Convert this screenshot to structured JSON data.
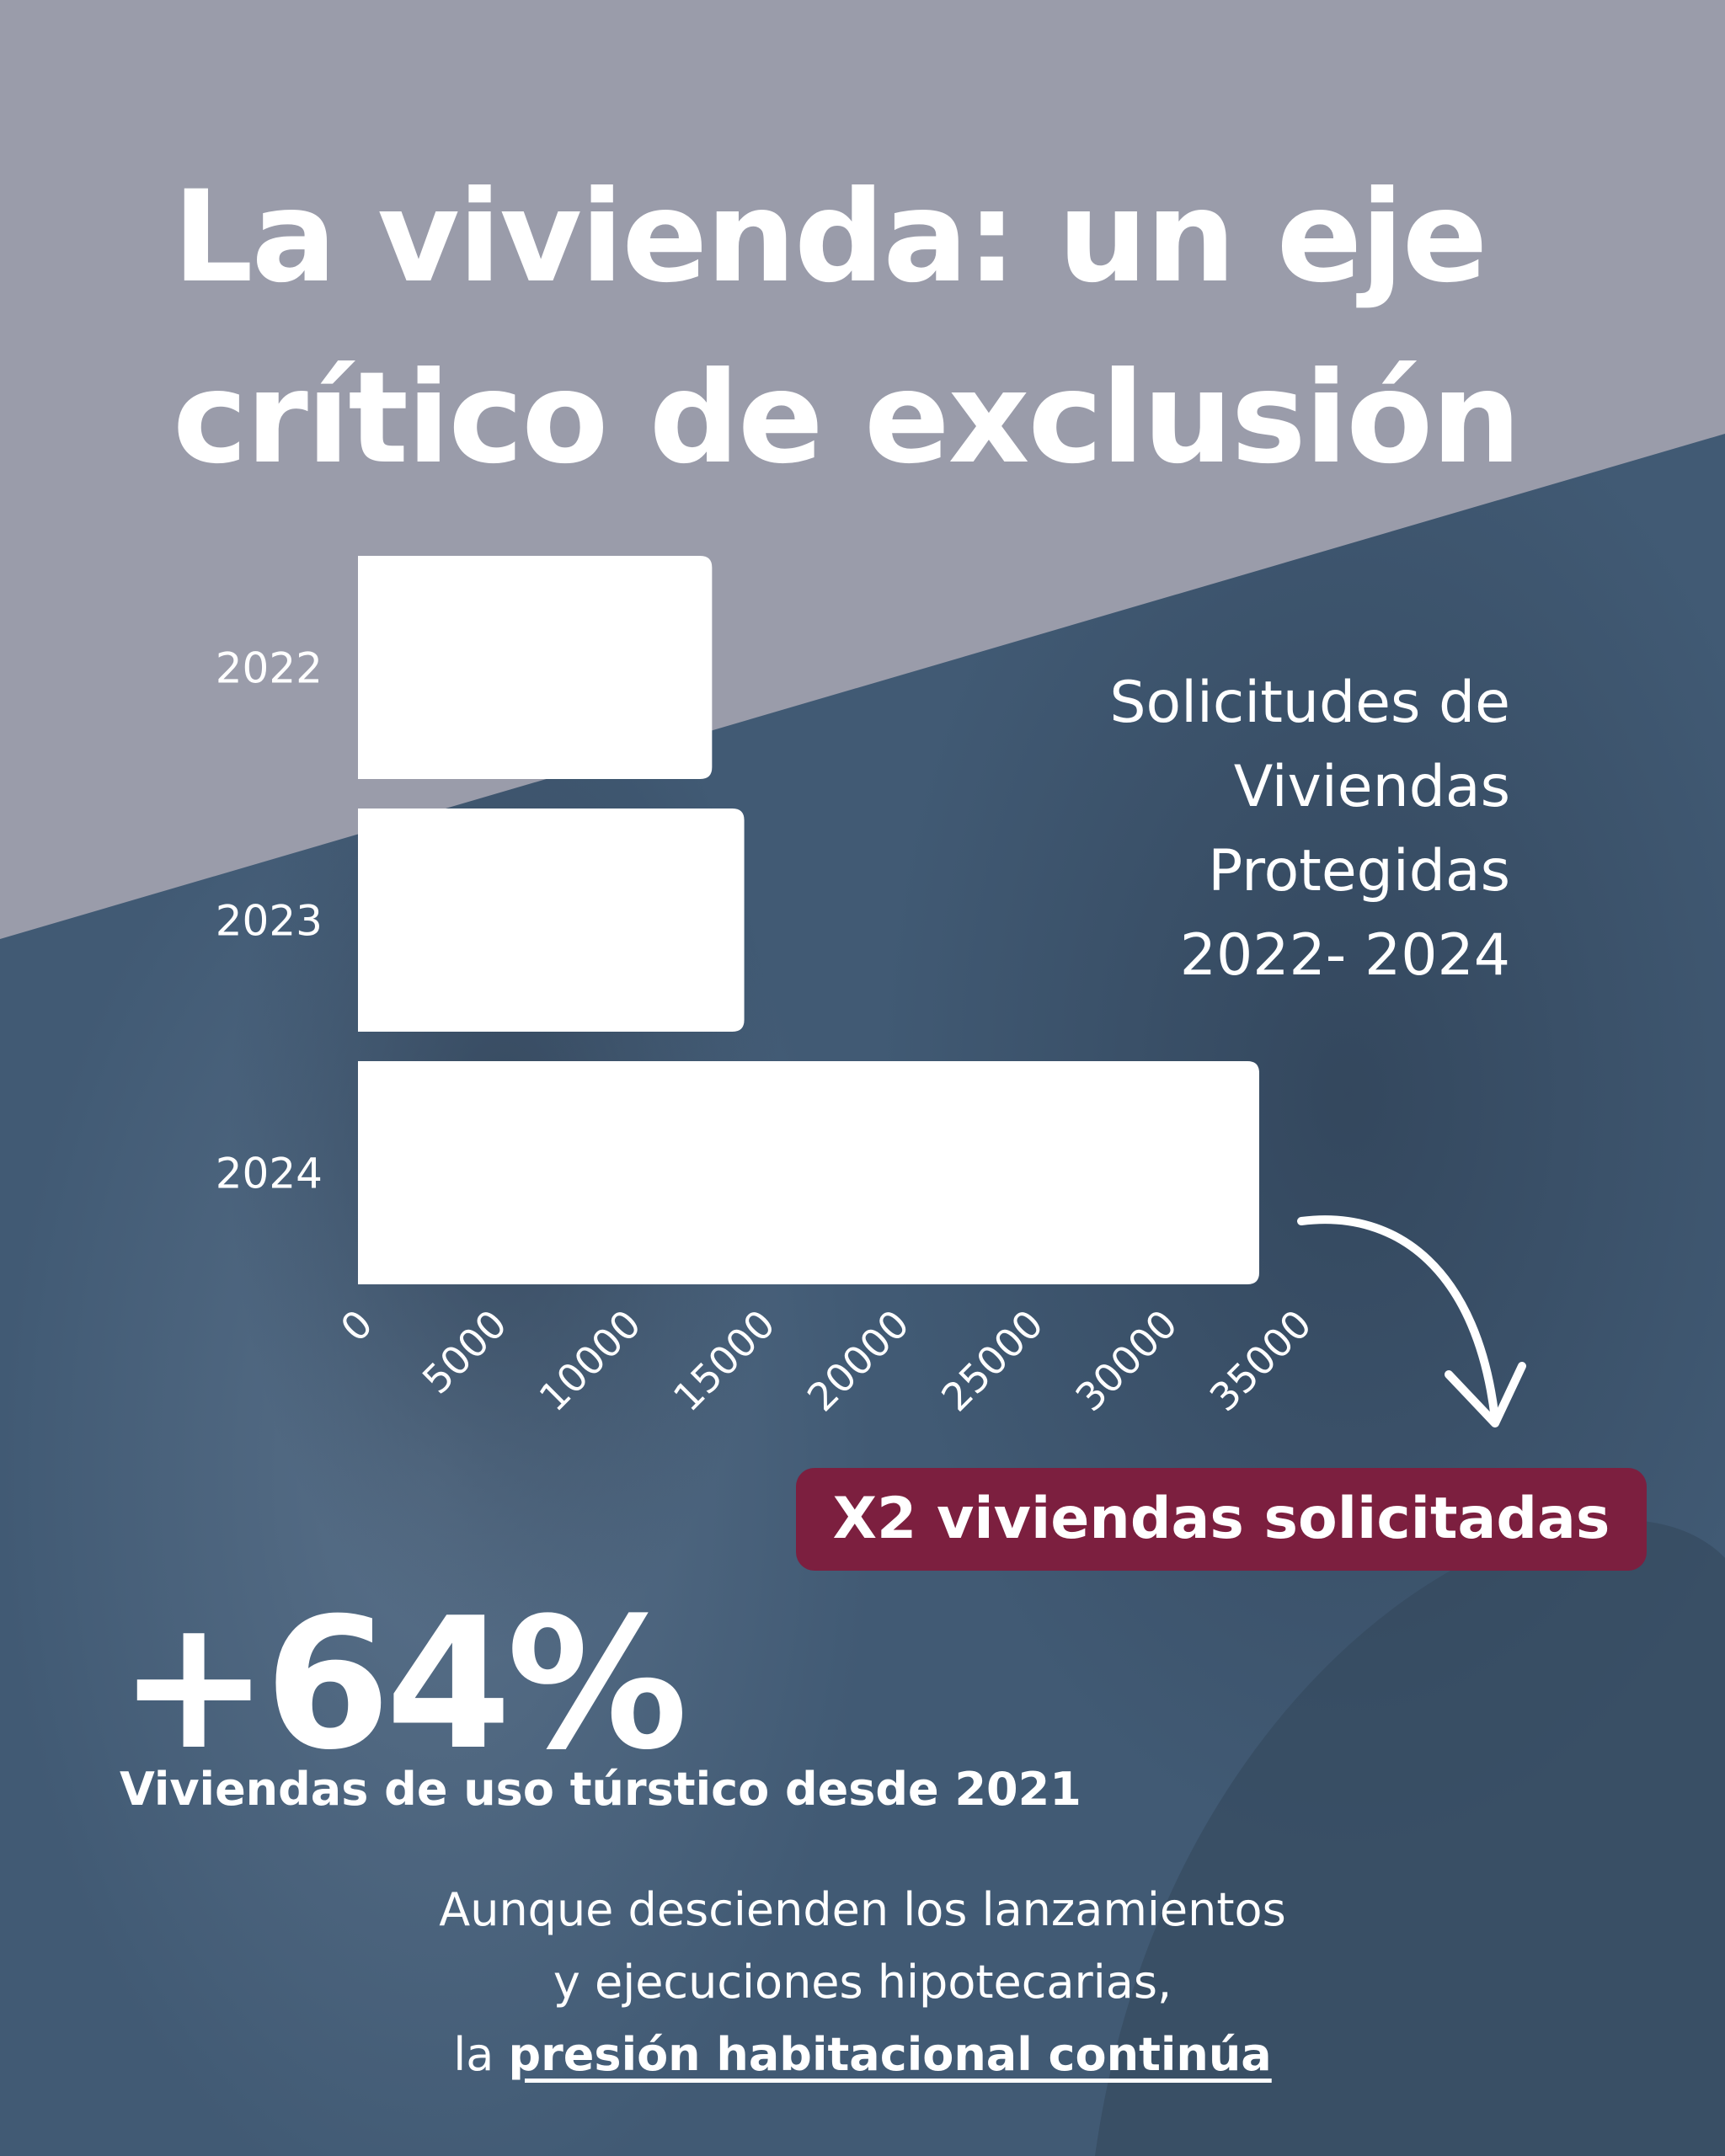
{
  "title": {
    "line1": "La vivienda: un eje",
    "line2": "crítico de exclusión"
  },
  "chart_data": {
    "type": "bar",
    "orientation": "horizontal",
    "title": "Solicitudes de Viviendas Protegidas 2022- 2024",
    "title_lines": [
      "Solicitudes de",
      "Viviendas",
      "Protegidas",
      "2022- 2024"
    ],
    "categories": [
      "2022",
      "2023",
      "2024"
    ],
    "values": [
      13200,
      14400,
      33600
    ],
    "xticks": [
      "0",
      "5000",
      "10000",
      "15000",
      "20000",
      "25000",
      "30000",
      "35000"
    ],
    "xlim": [
      0,
      35000
    ],
    "xlabel": "",
    "ylabel": "",
    "grid": false,
    "bar_color": "#ffffff"
  },
  "callout": {
    "badge": "X2 viviendas solicitadas"
  },
  "stat": {
    "value": "+64%",
    "label": "Viviendas de uso túrstico desde 2021"
  },
  "footer": {
    "line1": "Aunque descienden los lanzamientos",
    "line2": "y ejecuciones hipotecarias,",
    "line3_prefix": "la ",
    "line3_emphasis": "presión habitacional continúa"
  },
  "colors": {
    "top_band": "#9a9caa",
    "dark_band": "#415a74",
    "badge": "#7c1f3f",
    "text": "#ffffff"
  }
}
